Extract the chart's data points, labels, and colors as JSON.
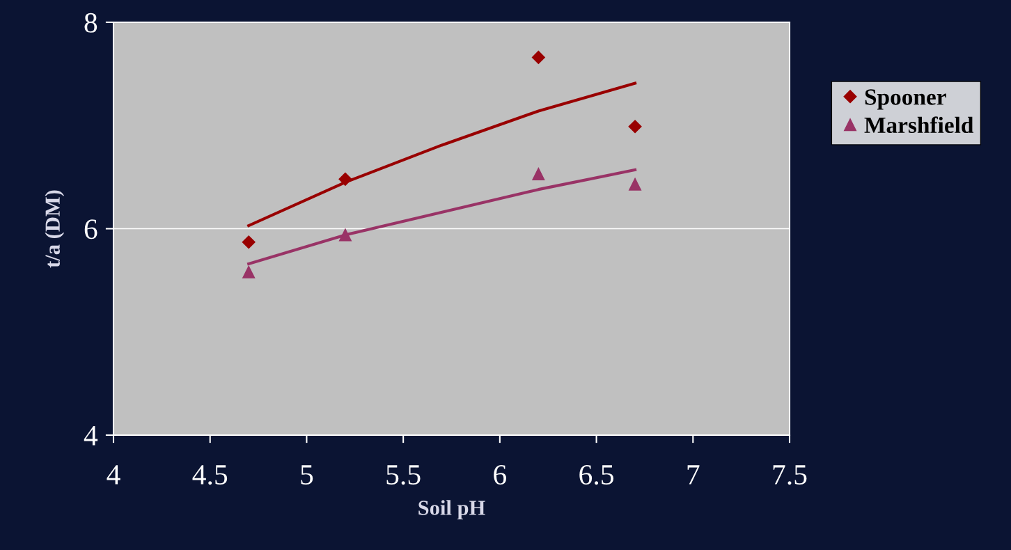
{
  "chart_data": {
    "type": "scatter",
    "xlabel": "Soil pH",
    "ylabel": "t/a (DM)",
    "xlim": [
      4,
      7.5
    ],
    "xticks": [
      4,
      4.5,
      5,
      5.5,
      6,
      6.5,
      7,
      7.5
    ],
    "ylim": [
      4,
      8
    ],
    "yticks": [
      4,
      6,
      8
    ],
    "grid": "y",
    "legend": "right",
    "series": [
      {
        "name": "Spooner",
        "color": "#990000",
        "marker": "diamond",
        "x": [
          4.7,
          5.2,
          6.2,
          6.7
        ],
        "values": [
          5.87,
          6.48,
          7.66,
          6.99
        ]
      },
      {
        "name": "Marshfield",
        "color": "#993366",
        "marker": "triangle",
        "x": [
          4.7,
          5.2,
          6.2,
          6.7
        ],
        "values": [
          5.58,
          5.94,
          6.53,
          6.43
        ]
      },
      {
        "type": "line",
        "color": "#990000",
        "marker": "none",
        "x": [
          4.7,
          5.2,
          5.7,
          6.2,
          6.7
        ],
        "values": [
          6.03,
          6.45,
          6.81,
          7.14,
          7.41
        ]
      },
      {
        "type": "line",
        "color": "#993366",
        "marker": "none",
        "x": [
          4.7,
          5.2,
          6.2,
          6.7
        ],
        "values": [
          5.66,
          5.94,
          6.38,
          6.57
        ]
      }
    ]
  }
}
